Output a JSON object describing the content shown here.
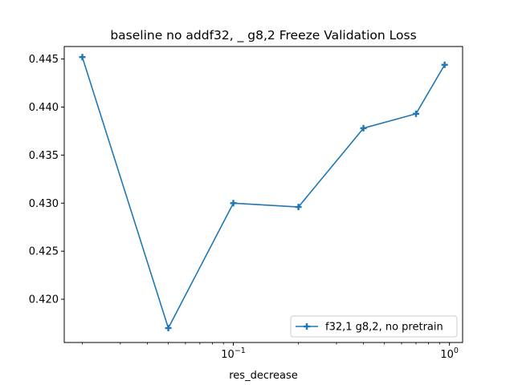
{
  "chart_data": {
    "type": "line",
    "title": "baseline no addf32, _ g8,2 Freeze Validation Loss",
    "xlabel": "res_decrease",
    "ylabel": "",
    "xscale": "log",
    "grid": false,
    "legend_position": "lower-right",
    "xlim": [
      0.0165,
      1.15
    ],
    "ylim": [
      0.4155,
      0.4463
    ],
    "x_ticks": [
      {
        "value": 0.1,
        "label": "10^-1"
      },
      {
        "value": 1,
        "label": "10^0"
      }
    ],
    "y_ticks": [
      {
        "value": 0.42,
        "label": "0.420"
      },
      {
        "value": 0.425,
        "label": "0.425"
      },
      {
        "value": 0.43,
        "label": "0.430"
      },
      {
        "value": 0.435,
        "label": "0.435"
      },
      {
        "value": 0.44,
        "label": "0.440"
      },
      {
        "value": 0.445,
        "label": "0.445"
      }
    ],
    "series": [
      {
        "name": "f32,1 g8,2, no pretrain",
        "color": "#1f77b4",
        "marker": "plus",
        "x": [
          0.02,
          0.05,
          0.1,
          0.2,
          0.4,
          0.7,
          0.95
        ],
        "y": [
          0.4452,
          0.417,
          0.43,
          0.4296,
          0.4378,
          0.4393,
          0.4444
        ]
      }
    ]
  }
}
